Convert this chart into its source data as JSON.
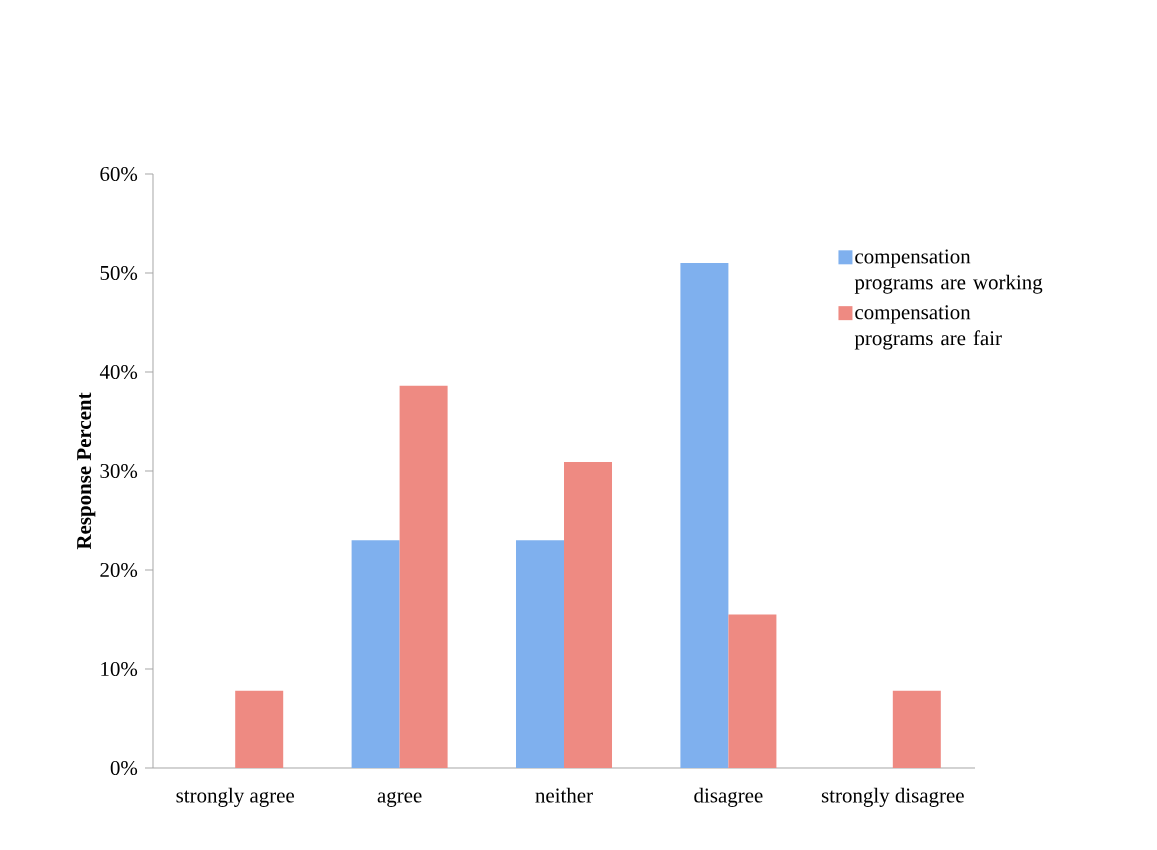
{
  "chart_data": {
    "type": "bar",
    "ylabel": "Response Percent",
    "categories": [
      "strongly agree",
      "agree",
      "neither",
      "disagree",
      "strongly disagree"
    ],
    "series": [
      {
        "name": "compensation programs are working",
        "color": "#7fb0ee",
        "values": [
          0,
          23,
          23,
          51,
          0
        ]
      },
      {
        "name": "compensation programs are fair",
        "color": "#ee8a82",
        "values": [
          7.8,
          38.6,
          30.9,
          15.5,
          7.8
        ]
      }
    ],
    "ylim": [
      0,
      60
    ],
    "yticks": [
      {
        "value": 0,
        "label": "0%"
      },
      {
        "value": 10,
        "label": "10%"
      },
      {
        "value": 20,
        "label": "20%"
      },
      {
        "value": 30,
        "label": "30%"
      },
      {
        "value": 40,
        "label": "40%"
      },
      {
        "value": 50,
        "label": "50%"
      },
      {
        "value": 60,
        "label": "60%"
      }
    ],
    "grid": false,
    "legend": "right"
  }
}
